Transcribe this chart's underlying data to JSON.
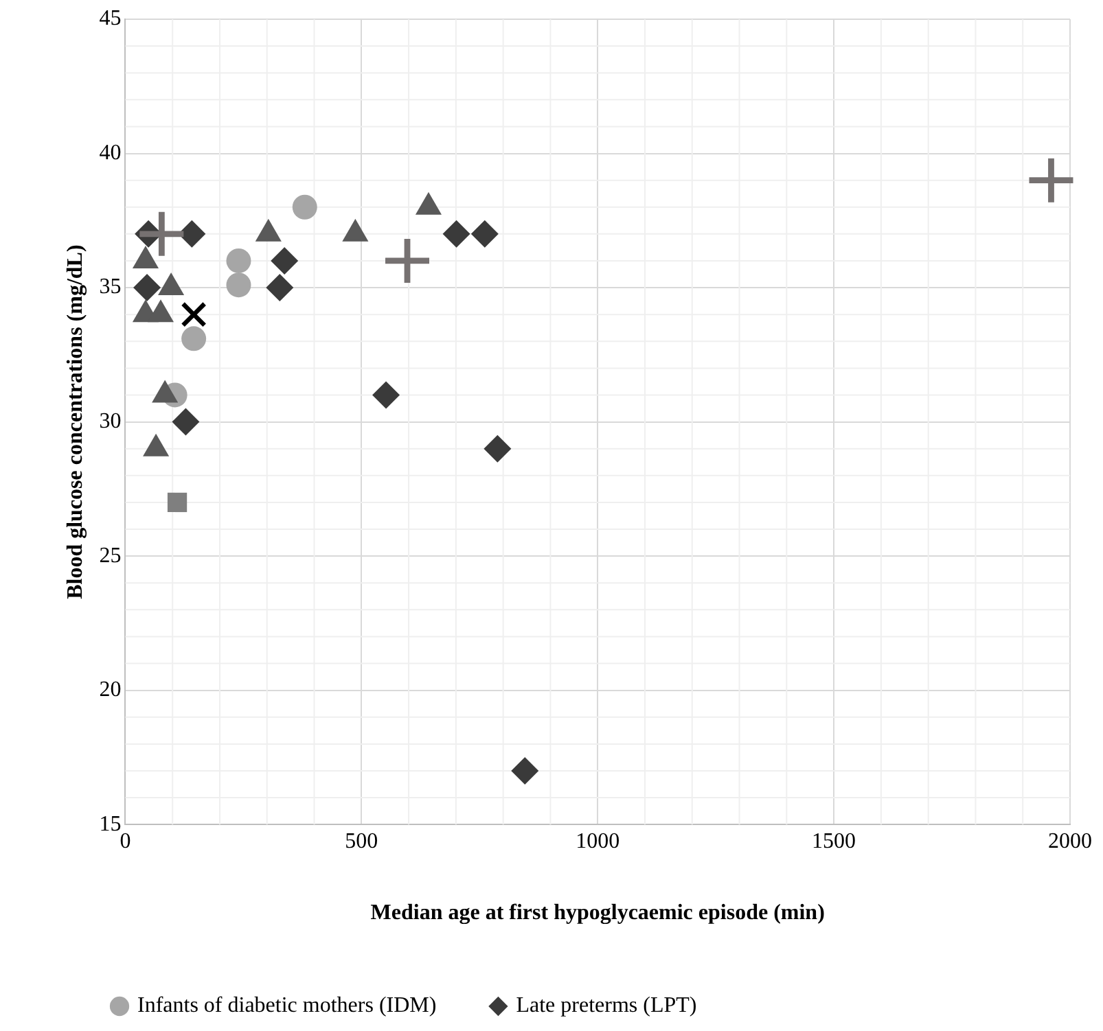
{
  "chart_data": {
    "type": "scatter",
    "xlabel": "Median age at first hypoglycaemic episode (min)",
    "ylabel": "Blood glucose concentrations (mg/dL)",
    "xlim": [
      0,
      2000
    ],
    "xticks": [
      0,
      500,
      1000,
      1500,
      2000
    ],
    "ylim": [
      15,
      45
    ],
    "yticks": [
      15,
      20,
      25,
      30,
      35,
      40,
      45
    ],
    "grid": true,
    "legend": "bottom",
    "series": [
      {
        "name": "Infants of diabetic mothers (IDM)",
        "color": "#a6a6a6",
        "marker": "circle",
        "x": [
          105,
          145,
          240,
          240,
          380
        ],
        "values": [
          31,
          33.1,
          36,
          35.1,
          38
        ]
      },
      {
        "name": "Late preterms (LPT)",
        "color": "#3a3a3a",
        "marker": "diamond",
        "x": [
          49,
          141,
          46,
          337,
          327,
          128,
          701,
          761,
          552,
          788,
          846
        ],
        "values": [
          37,
          37,
          35,
          36,
          35,
          30,
          37,
          37,
          31,
          29,
          17
        ]
      },
      {
        "color": "#595959",
        "marker": "triangle",
        "x": [
          43,
          97,
          43,
          75,
          84,
          65,
          303,
          487,
          642
        ],
        "values": [
          36,
          35,
          34,
          34,
          31,
          29,
          37,
          37,
          38
        ]
      },
      {
        "color": "#7f7f7f",
        "marker": "square",
        "x": [
          110
        ],
        "values": [
          27
        ]
      },
      {
        "color": "#767171",
        "marker": "cross",
        "x": [
          77,
          597,
          1960
        ],
        "values": [
          37,
          36,
          39
        ]
      },
      {
        "color": "#000000",
        "marker": "x",
        "x": [
          145
        ],
        "values": [
          34
        ]
      }
    ]
  }
}
